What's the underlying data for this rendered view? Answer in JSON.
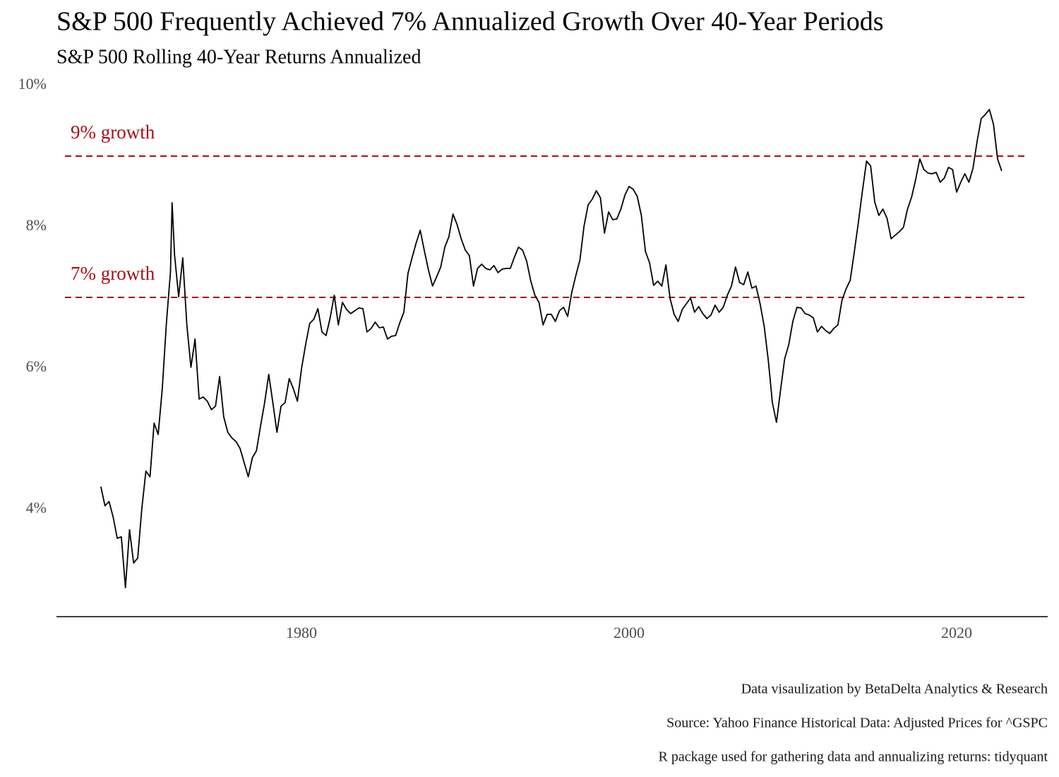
{
  "chart_data": {
    "type": "line",
    "title": "S&P 500 Frequently Achieved 7% Annualized Growth Over 40-Year Periods",
    "subtitle": "S&P 500 Rolling 40-Year Returns Annualized",
    "captions": [
      "Data visaulization by BetaDelta Analytics & Research",
      "Source: Yahoo Finance Historical Data: Adjusted Prices for ^GSPC",
      "R package used for gathering data and annualizing returns: tidyquant"
    ],
    "color": "#000000",
    "xlim": [
      1965.04,
      2025.56
    ],
    "xticks": [
      1980,
      2000,
      2020
    ],
    "ylim": [
      2.48,
      10
    ],
    "yticks": [
      {
        "value": 4,
        "label": "4%"
      },
      {
        "value": 6,
        "label": "6%"
      },
      {
        "value": 8,
        "label": "8%"
      },
      {
        "value": 10,
        "label": "10%"
      }
    ],
    "reference_lines": [
      {
        "value": 9,
        "label": "9% growth",
        "color": "#a50f15"
      },
      {
        "value": 7,
        "label": "7% growth",
        "color": "#a50f15"
      }
    ],
    "x": [
      1967.75,
      1968.0,
      1968.25,
      1968.5,
      1968.75,
      1969.0,
      1969.25,
      1969.5,
      1969.75,
      1970.0,
      1970.25,
      1970.5,
      1970.75,
      1971.0,
      1971.25,
      1971.5,
      1971.75,
      1972.0,
      1972.1,
      1972.25,
      1972.5,
      1972.75,
      1973.0,
      1973.25,
      1973.5,
      1973.75,
      1974.0,
      1974.25,
      1974.5,
      1974.75,
      1975.0,
      1975.25,
      1975.5,
      1975.75,
      1976.0,
      1976.25,
      1976.5,
      1976.75,
      1977.0,
      1977.25,
      1977.5,
      1977.75,
      1978.0,
      1978.25,
      1978.5,
      1978.75,
      1979.0,
      1979.25,
      1979.5,
      1979.75,
      1980.0,
      1980.25,
      1980.5,
      1980.75,
      1981.0,
      1981.25,
      1981.5,
      1981.75,
      1982.0,
      1982.25,
      1982.5,
      1982.75,
      1983.0,
      1983.25,
      1983.5,
      1983.75,
      1984.0,
      1984.25,
      1984.5,
      1984.75,
      1985.0,
      1985.25,
      1985.5,
      1985.75,
      1986.0,
      1986.25,
      1986.5,
      1986.75,
      1987.0,
      1987.25,
      1987.5,
      1987.75,
      1988.0,
      1988.25,
      1988.5,
      1988.75,
      1989.0,
      1989.25,
      1989.5,
      1989.75,
      1990.0,
      1990.25,
      1990.5,
      1990.75,
      1991.0,
      1991.25,
      1991.5,
      1991.75,
      1992.0,
      1992.25,
      1992.5,
      1992.75,
      1993.0,
      1993.25,
      1993.5,
      1993.75,
      1994.0,
      1994.25,
      1994.5,
      1994.75,
      1995.0,
      1995.25,
      1995.5,
      1995.75,
      1996.0,
      1996.25,
      1996.5,
      1996.75,
      1997.0,
      1997.25,
      1997.5,
      1997.75,
      1998.0,
      1998.25,
      1998.5,
      1998.75,
      1999.0,
      1999.25,
      1999.5,
      1999.75,
      2000.0,
      2000.25,
      2000.5,
      2000.75,
      2001.0,
      2001.25,
      2001.5,
      2001.75,
      2002.0,
      2002.25,
      2002.5,
      2002.75,
      2003.0,
      2003.25,
      2003.5,
      2003.75,
      2004.0,
      2004.25,
      2004.5,
      2004.75,
      2005.0,
      2005.25,
      2005.5,
      2005.75,
      2006.0,
      2006.25,
      2006.5,
      2006.75,
      2007.0,
      2007.25,
      2007.5,
      2007.75,
      2008.0,
      2008.25,
      2008.5,
      2008.75,
      2009.0,
      2009.25,
      2009.5,
      2009.75,
      2010.0,
      2010.25,
      2010.5,
      2010.75,
      2011.0,
      2011.25,
      2011.5,
      2011.75,
      2012.0,
      2012.25,
      2012.5,
      2012.75,
      2013.0,
      2013.25,
      2013.5,
      2013.75,
      2014.0,
      2014.25,
      2014.5,
      2014.75,
      2015.0,
      2015.25,
      2015.5,
      2015.75,
      2016.0,
      2016.25,
      2016.5,
      2016.75,
      2017.0,
      2017.25,
      2017.5,
      2017.75,
      2018.0,
      2018.25,
      2018.5,
      2018.75,
      2019.0,
      2019.25,
      2019.5,
      2019.75,
      2020.0,
      2020.25,
      2020.5,
      2020.75,
      2021.0,
      2021.25,
      2021.5,
      2021.75,
      2022.0,
      2022.25,
      2022.5,
      2022.75
    ],
    "values": [
      4.32,
      4.05,
      4.11,
      3.89,
      3.59,
      3.61,
      2.89,
      3.71,
      3.24,
      3.31,
      4.01,
      4.54,
      4.46,
      5.22,
      5.06,
      5.71,
      6.63,
      7.36,
      8.34,
      7.6,
      7.01,
      7.56,
      6.61,
      6.01,
      6.41,
      5.56,
      5.59,
      5.53,
      5.41,
      5.46,
      5.88,
      5.31,
      5.09,
      5.01,
      4.96,
      4.86,
      4.66,
      4.46,
      4.73,
      4.83,
      5.18,
      5.51,
      5.91,
      5.51,
      5.09,
      5.46,
      5.51,
      5.85,
      5.71,
      5.53,
      5.99,
      6.33,
      6.63,
      6.69,
      6.84,
      6.51,
      6.46,
      6.71,
      7.03,
      6.61,
      6.93,
      6.83,
      6.77,
      6.81,
      6.85,
      6.84,
      6.51,
      6.56,
      6.65,
      6.57,
      6.58,
      6.41,
      6.45,
      6.46,
      6.64,
      6.79,
      7.34,
      7.56,
      7.77,
      7.95,
      7.66,
      7.39,
      7.16,
      7.29,
      7.43,
      7.71,
      7.86,
      8.18,
      8.03,
      7.83,
      7.67,
      7.59,
      7.16,
      7.41,
      7.47,
      7.41,
      7.39,
      7.45,
      7.35,
      7.4,
      7.41,
      7.41,
      7.57,
      7.71,
      7.67,
      7.51,
      7.23,
      7.03,
      6.93,
      6.61,
      6.76,
      6.76,
      6.66,
      6.81,
      6.86,
      6.73,
      7.07,
      7.31,
      7.53,
      8.01,
      8.31,
      8.39,
      8.51,
      8.41,
      7.91,
      8.21,
      8.1,
      8.11,
      8.25,
      8.45,
      8.57,
      8.53,
      8.43,
      8.16,
      7.65,
      7.49,
      7.17,
      7.23,
      7.16,
      7.46,
      6.99,
      6.76,
      6.66,
      6.83,
      6.91,
      6.99,
      6.79,
      6.87,
      6.77,
      6.7,
      6.75,
      6.89,
      6.79,
      6.86,
      7.03,
      7.16,
      7.43,
      7.21,
      7.18,
      7.36,
      7.13,
      7.16,
      6.91,
      6.59,
      6.11,
      5.51,
      5.23,
      5.69,
      6.13,
      6.33,
      6.66,
      6.86,
      6.85,
      6.77,
      6.75,
      6.71,
      6.51,
      6.59,
      6.53,
      6.49,
      6.56,
      6.61,
      6.96,
      7.12,
      7.24,
      7.64,
      8.06,
      8.51,
      8.93,
      8.86,
      8.35,
      8.16,
      8.25,
      8.12,
      7.83,
      7.88,
      7.93,
      7.99,
      8.25,
      8.42,
      8.67,
      8.96,
      8.81,
      8.76,
      8.75,
      8.77,
      8.63,
      8.69,
      8.84,
      8.81,
      8.49,
      8.63,
      8.75,
      8.63,
      8.83,
      9.21,
      9.53,
      9.59,
      9.66,
      9.45,
      8.96,
      8.79
    ]
  }
}
